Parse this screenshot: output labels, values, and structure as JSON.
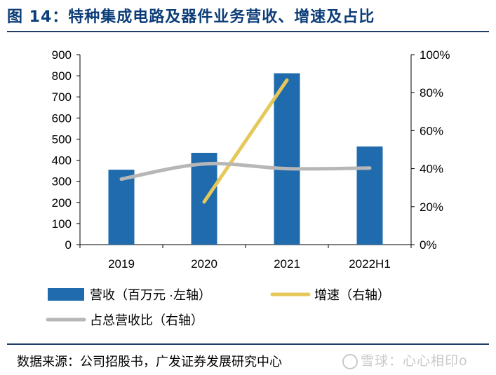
{
  "figure": {
    "title": "图 14：特种集成电路及器件业务营收、增速及占比",
    "source": "数据来源：公司招股书，广发证券发展研究中心",
    "watermark": "雪球：心心相印o"
  },
  "chart_data": {
    "type": "bar",
    "categories": [
      "2019",
      "2020",
      "2021",
      "2022H1"
    ],
    "series": [
      {
        "name": "营收（百万元 ·左轴）",
        "type": "bar",
        "axis": "left",
        "values": [
          355,
          435,
          812,
          465
        ],
        "color": "#1f6bad"
      },
      {
        "name": "增速（右轴）",
        "type": "line",
        "axis": "right",
        "values": [
          null,
          22.5,
          86.6,
          null
        ],
        "color": "#e6c85a"
      },
      {
        "name": "占总营收比（右轴）",
        "type": "line",
        "axis": "right",
        "values": [
          34.5,
          42.5,
          40.0,
          40.3
        ],
        "color": "#b7b7b7"
      }
    ],
    "left_axis": {
      "ylim": [
        0,
        900
      ],
      "ticks": [
        "0",
        "100",
        "200",
        "300",
        "400",
        "500",
        "600",
        "700",
        "800",
        "900"
      ]
    },
    "right_axis": {
      "ylim": [
        0,
        100
      ],
      "ticks": [
        "0%",
        "20%",
        "40%",
        "60%",
        "80%",
        "100%"
      ]
    },
    "grid": false,
    "legend_position": "bottom"
  }
}
